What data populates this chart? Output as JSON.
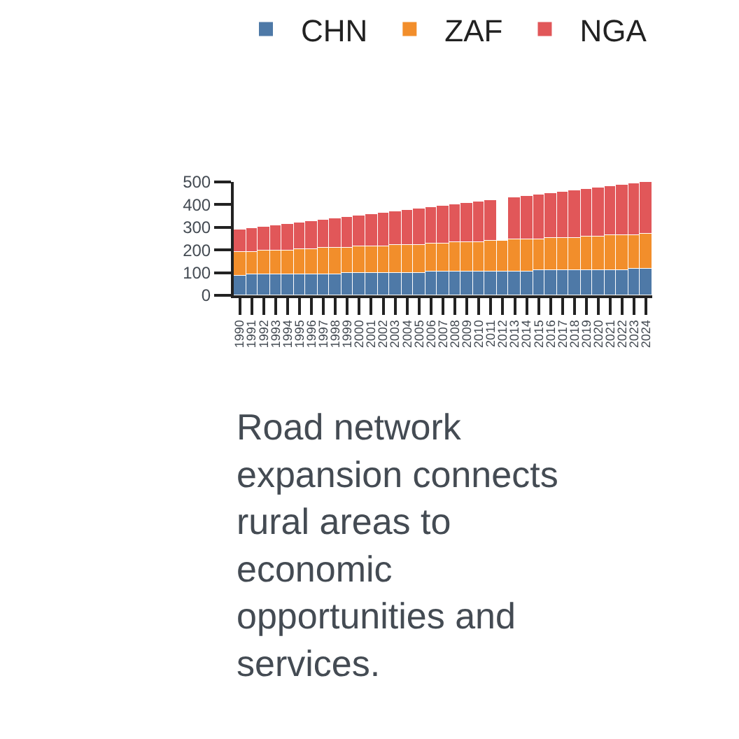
{
  "chart_data": {
    "type": "bar",
    "stacked": true,
    "categories": [
      "1990",
      "1991",
      "1992",
      "1993",
      "1994",
      "1995",
      "1996",
      "1997",
      "1998",
      "1999",
      "2000",
      "2001",
      "2002",
      "2003",
      "2004",
      "2005",
      "2006",
      "2007",
      "2008",
      "2009",
      "2010",
      "2011",
      "2012",
      "2013",
      "2014",
      "2015",
      "2016",
      "2017",
      "2018",
      "2019",
      "2020",
      "2021",
      "2022",
      "2023",
      "2024"
    ],
    "series": [
      {
        "name": "CHN",
        "color": "#4e79a7",
        "values": [
          89,
          90,
          91,
          91,
          92,
          93,
          94,
          95,
          95,
          96,
          97,
          98,
          99,
          99,
          100,
          101,
          102,
          102,
          103,
          104,
          105,
          106,
          106,
          107,
          108,
          109,
          110,
          110,
          111,
          112,
          113,
          114,
          114,
          115,
          116
        ]
      },
      {
        "name": "ZAF",
        "color": "#f28e2b",
        "values": [
          101,
          103,
          104,
          106,
          107,
          109,
          110,
          112,
          113,
          115,
          117,
          118,
          120,
          121,
          123,
          124,
          126,
          127,
          129,
          131,
          132,
          134,
          135,
          137,
          138,
          140,
          141,
          143,
          145,
          146,
          148,
          149,
          151,
          152,
          154
        ]
      },
      {
        "name": "NGA",
        "color": "#e15759",
        "values": [
          99,
          103,
          107,
          111,
          114,
          118,
          122,
          126,
          130,
          134,
          138,
          141,
          145,
          149,
          153,
          157,
          161,
          164,
          168,
          172,
          176,
          180,
          null,
          187,
          191,
          195,
          199,
          202,
          206,
          210,
          214,
          218,
          222,
          226,
          230
        ]
      }
    ],
    "ylim": [
      0,
      500
    ],
    "yticks": [
      0,
      100,
      200,
      300,
      400,
      500
    ],
    "legend": "top",
    "annotations": [
      "Road network expansion connects rural areas to economic opportunities and services."
    ]
  }
}
